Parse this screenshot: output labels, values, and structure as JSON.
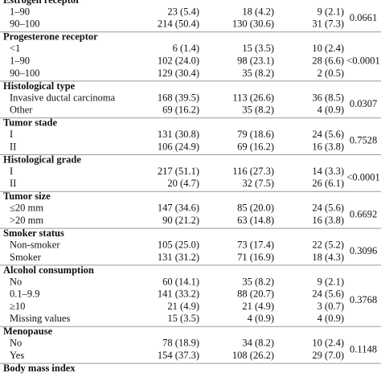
{
  "table": {
    "sections": [
      {
        "title": "Estrogen receptor",
        "rows": [
          {
            "label": "1–90",
            "cells": [
              "23 (5.4)",
              "18 (4.2)",
              "9 (2.1)"
            ]
          },
          {
            "label": "90–100",
            "cells": [
              "214 (50.4)",
              "130 (30.6)",
              "31 (7.3)"
            ]
          }
        ],
        "p": "0.0661"
      },
      {
        "title": "Progesterone receptor",
        "rows": [
          {
            "label": "<1",
            "cells": [
              "6 (1.4)",
              "15 (3.5)",
              "10 (2.4)"
            ]
          },
          {
            "label": "1–90",
            "cells": [
              "102 (24.0)",
              "98 (23.1)",
              "28 (6.6)"
            ]
          },
          {
            "label": "90–100",
            "cells": [
              "129 (30.4)",
              "35 (8.2)",
              "2 (0.5)"
            ]
          }
        ],
        "p": "<0.0001"
      },
      {
        "title": "Histological type",
        "rows": [
          {
            "label": "Invasive ductal carcinoma",
            "cells": [
              "168 (39.5)",
              "113 (26.6)",
              "36 (8.5)"
            ]
          },
          {
            "label": "Other",
            "cells": [
              "69 (16.2)",
              "35 (8.2)",
              "4 (0.9)"
            ]
          }
        ],
        "p": "0.0307"
      },
      {
        "title": "Tumor stade",
        "rows": [
          {
            "label": "I",
            "cells": [
              "131 (30.8)",
              "79 (18.6)",
              "24 (5.6)"
            ]
          },
          {
            "label": "II",
            "cells": [
              "106 (24.9)",
              "69 (16.2)",
              "16 (3.8)"
            ]
          }
        ],
        "p": "0.7528"
      },
      {
        "title": "Histological grade",
        "rows": [
          {
            "label": "I",
            "cells": [
              "217 (51.1)",
              "116 (27.3)",
              "14 (3.3)"
            ]
          },
          {
            "label": "II",
            "cells": [
              "20 (4.7)",
              "32 (7.5)",
              "26 (6.1)"
            ]
          }
        ],
        "p": "<0.0001"
      },
      {
        "title": "Tumor size",
        "rows": [
          {
            "label": "≤20 mm",
            "cells": [
              "147 (34.6)",
              "85 (20.0)",
              "24 (5.6)"
            ]
          },
          {
            "label": ">20 mm",
            "cells": [
              "90 (21.2)",
              "63 (14.8)",
              "16 (3.8)"
            ]
          }
        ],
        "p": "0.6692"
      },
      {
        "title": "Smoker status",
        "rows": [
          {
            "label": "Non-smoker",
            "cells": [
              "105 (25.0)",
              "73 (17.4)",
              "22 (5.2)"
            ]
          },
          {
            "label": "Smoker",
            "cells": [
              "131 (31.2)",
              "71 (16.9)",
              "18 (4.3)"
            ]
          }
        ],
        "p": "0.3096"
      },
      {
        "title": "Alcohol consumption",
        "rows": [
          {
            "label": "No",
            "cells": [
              "60 (14.1)",
              "35 (8.2)",
              "9 (2.1)"
            ]
          },
          {
            "label": "0.1–9.9",
            "cells": [
              "141 (33.2)",
              "88 (20.7)",
              "24 (5.6)"
            ]
          },
          {
            "label": "≥10",
            "cells": [
              "21 (4.9)",
              "21 (4.9)",
              "3 (0.7)"
            ]
          },
          {
            "label": "Missing values",
            "cells": [
              "15 (3.5)",
              "4 (0.9)",
              "4 (0.9)"
            ]
          }
        ],
        "p": "0.3768"
      },
      {
        "title": "Menopause",
        "rows": [
          {
            "label": "No",
            "cells": [
              "78 (18.9)",
              "34 (8.2)",
              "10 (2.4)"
            ]
          },
          {
            "label": "Yes",
            "cells": [
              "154 (37.3)",
              "108 (26.2)",
              "29 (7.0)"
            ]
          }
        ],
        "p": "0.1148"
      },
      {
        "title": "Body mass index",
        "rows": []
      }
    ]
  }
}
